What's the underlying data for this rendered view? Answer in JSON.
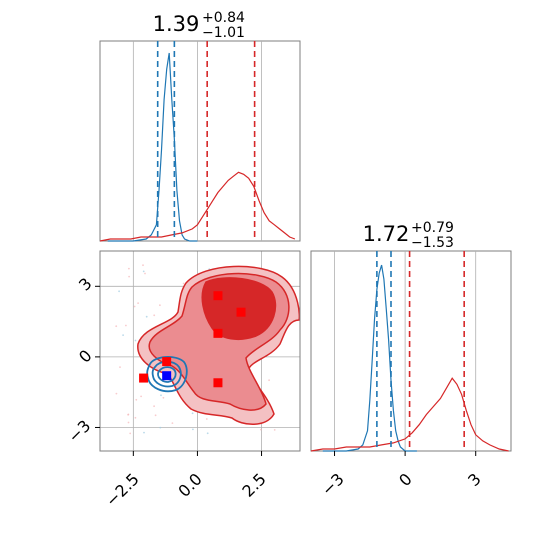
{
  "chart_data": [
    {
      "type": "histogram",
      "panel": "marginal-x",
      "title": {
        "value": "1.39",
        "plus": "+0.84",
        "minus": "−1.01"
      },
      "xlim": [
        -3.8,
        4.0
      ],
      "grid": true,
      "series": [
        {
          "color": "#1f77b4",
          "quantiles": [
            -1.55,
            -0.9
          ],
          "x": [
            -3.5,
            -3.0,
            -2.5,
            -2.0,
            -1.8,
            -1.6,
            -1.5,
            -1.4,
            -1.3,
            -1.2,
            -1.1,
            -1.0,
            -0.9,
            -0.8,
            -0.7,
            -0.6,
            -0.5,
            -0.3,
            0.0
          ],
          "density": [
            0.0,
            0.0,
            0.0,
            0.01,
            0.03,
            0.08,
            0.25,
            0.45,
            0.7,
            0.85,
            0.93,
            0.7,
            0.5,
            0.25,
            0.1,
            0.03,
            0.01,
            0.0,
            0.0
          ]
        },
        {
          "color": "#d62728",
          "quantiles": [
            0.38,
            2.23
          ],
          "x": [
            -3.8,
            -3.4,
            -3.0,
            -2.6,
            -2.2,
            -1.8,
            -1.4,
            -1.0,
            -0.6,
            -0.2,
            0.0,
            0.2,
            0.4,
            0.6,
            0.8,
            1.0,
            1.2,
            1.4,
            1.6,
            1.8,
            2.0,
            2.2,
            2.4,
            2.6,
            2.8,
            3.0,
            3.2,
            3.4,
            3.6,
            3.8
          ],
          "density": [
            0.0,
            0.01,
            0.01,
            0.01,
            0.02,
            0.02,
            0.02,
            0.03,
            0.04,
            0.06,
            0.08,
            0.12,
            0.16,
            0.2,
            0.24,
            0.27,
            0.3,
            0.32,
            0.34,
            0.33,
            0.31,
            0.27,
            0.2,
            0.14,
            0.1,
            0.08,
            0.06,
            0.04,
            0.02,
            0.01
          ]
        }
      ]
    },
    {
      "type": "contour",
      "panel": "joint",
      "xlim": [
        -3.8,
        4.0
      ],
      "ylim": [
        -4.0,
        4.5
      ],
      "xticks": [
        "−2.5",
        "0.0",
        "2.5"
      ],
      "xtick_values": [
        -2.5,
        0.0,
        2.5
      ],
      "yticks": [
        "3",
        "0",
        "−3"
      ],
      "ytick_values": [
        3,
        0,
        -3
      ],
      "grid": true,
      "blue_markers": [
        [
          -1.2,
          -0.8
        ]
      ],
      "red_markers": [
        [
          0.8,
          2.6
        ],
        [
          1.7,
          1.9
        ],
        [
          0.8,
          1.0
        ],
        [
          -1.2,
          -0.2
        ],
        [
          -2.1,
          -0.9
        ],
        [
          0.8,
          -1.1
        ]
      ]
    },
    {
      "type": "histogram",
      "panel": "marginal-y",
      "title": {
        "value": "1.72",
        "plus": "+0.79",
        "minus": "−1.53"
      },
      "xlim": [
        -4.0,
        4.5
      ],
      "xticks": [
        "−3",
        "0",
        "3"
      ],
      "xtick_values": [
        -3,
        0,
        3
      ],
      "grid": true,
      "series": [
        {
          "color": "#1f77b4",
          "quantiles": [
            -1.2,
            -0.6
          ],
          "x": [
            -3.5,
            -2.5,
            -2.0,
            -1.8,
            -1.6,
            -1.5,
            -1.4,
            -1.3,
            -1.2,
            -1.1,
            -1.0,
            -0.9,
            -0.8,
            -0.7,
            -0.6,
            -0.5,
            -0.4,
            -0.3,
            -0.2,
            0.0,
            0.5
          ],
          "density": [
            0.0,
            0.0,
            0.01,
            0.03,
            0.1,
            0.25,
            0.45,
            0.65,
            0.8,
            0.88,
            0.92,
            0.85,
            0.7,
            0.55,
            0.35,
            0.2,
            0.1,
            0.05,
            0.02,
            0.0,
            0.0
          ]
        },
        {
          "color": "#d62728",
          "quantiles": [
            0.19,
            2.51
          ],
          "x": [
            -4.0,
            -3.5,
            -3.0,
            -2.5,
            -2.0,
            -1.5,
            -1.0,
            -0.5,
            0.0,
            0.3,
            0.6,
            0.9,
            1.2,
            1.5,
            1.8,
            2.0,
            2.2,
            2.4,
            2.6,
            2.8,
            3.0,
            3.3,
            3.6,
            4.0,
            4.4
          ],
          "density": [
            0.0,
            0.01,
            0.01,
            0.02,
            0.02,
            0.02,
            0.03,
            0.04,
            0.06,
            0.09,
            0.13,
            0.18,
            0.22,
            0.26,
            0.32,
            0.36,
            0.33,
            0.28,
            0.2,
            0.13,
            0.08,
            0.05,
            0.03,
            0.01,
            0.0
          ]
        }
      ]
    }
  ]
}
